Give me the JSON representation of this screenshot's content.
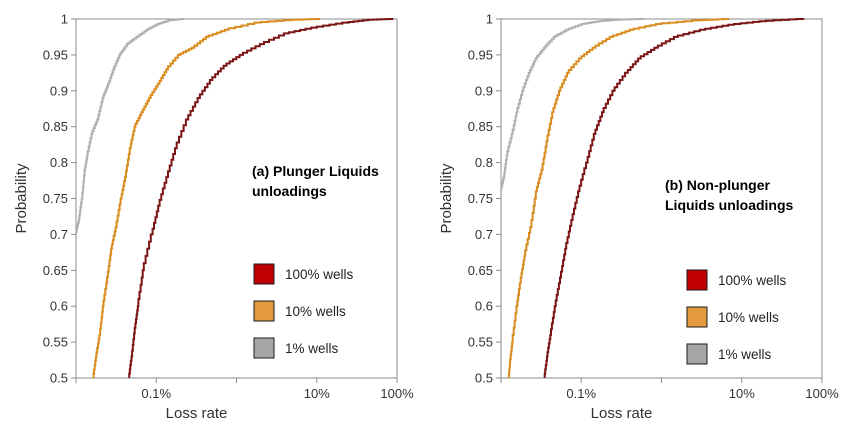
{
  "chart_data": [
    {
      "type": "line",
      "title": "",
      "annotation": [
        "(a) Plunger Liquids",
        "unloadings"
      ],
      "xlabel": "Loss rate",
      "ylabel": "Probability",
      "xscale": "log",
      "xlim": [
        0.0001,
        1
      ],
      "ylim": [
        0.5,
        1
      ],
      "grid": false,
      "legend_position": "lower-right",
      "x_ticks": [
        {
          "value": 0.001,
          "label": "0.1%"
        },
        {
          "value": 0.1,
          "label": "10%"
        },
        {
          "value": 1,
          "label": "100%"
        }
      ],
      "y_ticks": [
        {
          "value": 0.5,
          "label": "0.5"
        },
        {
          "value": 0.55,
          "label": "0.55"
        },
        {
          "value": 0.6,
          "label": "0.6"
        },
        {
          "value": 0.65,
          "label": "0.65"
        },
        {
          "value": 0.7,
          "label": "0.7"
        },
        {
          "value": 0.75,
          "label": "0.75"
        },
        {
          "value": 0.8,
          "label": "0.8"
        },
        {
          "value": 0.85,
          "label": "0.85"
        },
        {
          "value": 0.9,
          "label": "0.9"
        },
        {
          "value": 0.95,
          "label": "0.95"
        },
        {
          "value": 1,
          "label": "1"
        }
      ],
      "series": [
        {
          "name": "100% wells",
          "legend_color": "#c00000",
          "line_color": "#7b1414",
          "points": [
            [
              0.00046,
              0.5
            ],
            [
              0.0005,
              0.53
            ],
            [
              0.00055,
              0.57
            ],
            [
              0.0006,
              0.6
            ],
            [
              0.0007,
              0.65
            ],
            [
              0.0009,
              0.7
            ],
            [
              0.0011,
              0.74
            ],
            [
              0.0014,
              0.78
            ],
            [
              0.0018,
              0.82
            ],
            [
              0.0025,
              0.86
            ],
            [
              0.0035,
              0.89
            ],
            [
              0.005,
              0.915
            ],
            [
              0.0075,
              0.935
            ],
            [
              0.012,
              0.95
            ],
            [
              0.022,
              0.965
            ],
            [
              0.045,
              0.98
            ],
            [
              0.1,
              0.988
            ],
            [
              0.25,
              0.995
            ],
            [
              0.5,
              0.999
            ],
            [
              0.9,
              1
            ]
          ]
        },
        {
          "name": "10% wells",
          "legend_color": "#e39a3c",
          "line_color": "#d98c1f",
          "points": [
            [
              0.000165,
              0.5
            ],
            [
              0.00018,
              0.53
            ],
            [
              0.0002,
              0.56
            ],
            [
              0.00022,
              0.6
            ],
            [
              0.00025,
              0.64
            ],
            [
              0.00028,
              0.68
            ],
            [
              0.00032,
              0.71
            ],
            [
              0.00037,
              0.75
            ],
            [
              0.00042,
              0.78
            ],
            [
              0.00048,
              0.82
            ],
            [
              0.00055,
              0.85
            ],
            [
              0.00068,
              0.87
            ],
            [
              0.00085,
              0.89
            ],
            [
              0.0011,
              0.91
            ],
            [
              0.0014,
              0.93
            ],
            [
              0.002,
              0.95
            ],
            [
              0.003,
              0.96
            ],
            [
              0.0045,
              0.975
            ],
            [
              0.008,
              0.985
            ],
            [
              0.02,
              0.995
            ],
            [
              0.06,
              0.999
            ],
            [
              0.11,
              1
            ]
          ]
        },
        {
          "name": "1% wells",
          "legend_color": "#a6a6a6",
          "line_color": "#b0b0b0",
          "points": [
            [
              0.0001,
              0.7
            ],
            [
              0.00011,
              0.72
            ],
            [
              0.00012,
              0.75
            ],
            [
              0.00013,
              0.79
            ],
            [
              0.00014,
              0.81
            ],
            [
              0.00016,
              0.84
            ],
            [
              0.00019,
              0.86
            ],
            [
              0.00022,
              0.89
            ],
            [
              0.00026,
              0.91
            ],
            [
              0.0003,
              0.93
            ],
            [
              0.00036,
              0.95
            ],
            [
              0.00045,
              0.965
            ],
            [
              0.0006,
              0.975
            ],
            [
              0.0008,
              0.985
            ],
            [
              0.0011,
              0.993
            ],
            [
              0.0015,
              0.998
            ],
            [
              0.0022,
              1
            ]
          ]
        }
      ]
    },
    {
      "type": "line",
      "title": "",
      "annotation": [
        "(b) Non-plunger",
        "Liquids unloadings"
      ],
      "xlabel": "Loss rate",
      "ylabel": "Probability",
      "xscale": "log",
      "xlim": [
        0.0001,
        1
      ],
      "ylim": [
        0.5,
        1
      ],
      "grid": false,
      "legend_position": "lower-right",
      "x_ticks": [
        {
          "value": 0.001,
          "label": "0.1%"
        },
        {
          "value": 0.1,
          "label": "10%"
        },
        {
          "value": 1,
          "label": "100%"
        }
      ],
      "y_ticks": [
        {
          "value": 0.5,
          "label": "0.5"
        },
        {
          "value": 0.55,
          "label": "0.55"
        },
        {
          "value": 0.6,
          "label": "0.6"
        },
        {
          "value": 0.65,
          "label": "0.65"
        },
        {
          "value": 0.7,
          "label": "0.7"
        },
        {
          "value": 0.75,
          "label": "0.75"
        },
        {
          "value": 0.8,
          "label": "0.8"
        },
        {
          "value": 0.85,
          "label": "0.85"
        },
        {
          "value": 0.9,
          "label": "0.9"
        },
        {
          "value": 0.95,
          "label": "0.95"
        },
        {
          "value": 1,
          "label": "1"
        }
      ],
      "series": [
        {
          "name": "100% wells",
          "legend_color": "#c00000",
          "line_color": "#7b1414",
          "points": [
            [
              0.00035,
              0.5
            ],
            [
              0.00038,
              0.53
            ],
            [
              0.00042,
              0.56
            ],
            [
              0.00048,
              0.6
            ],
            [
              0.00056,
              0.64
            ],
            [
              0.00065,
              0.68
            ],
            [
              0.00078,
              0.72
            ],
            [
              0.00095,
              0.76
            ],
            [
              0.0012,
              0.8
            ],
            [
              0.0015,
              0.84
            ],
            [
              0.0019,
              0.87
            ],
            [
              0.0026,
              0.9
            ],
            [
              0.0038,
              0.925
            ],
            [
              0.0055,
              0.945
            ],
            [
              0.009,
              0.96
            ],
            [
              0.016,
              0.975
            ],
            [
              0.035,
              0.985
            ],
            [
              0.08,
              0.992
            ],
            [
              0.2,
              0.997
            ],
            [
              0.6,
              1
            ]
          ]
        },
        {
          "name": "10% wells",
          "legend_color": "#e39a3c",
          "line_color": "#d98c1f",
          "points": [
            [
              0.000125,
              0.5
            ],
            [
              0.00013,
              0.52
            ],
            [
              0.00014,
              0.55
            ],
            [
              0.00016,
              0.6
            ],
            [
              0.00018,
              0.64
            ],
            [
              0.0002,
              0.67
            ],
            [
              0.00024,
              0.71
            ],
            [
              0.00028,
              0.76
            ],
            [
              0.00033,
              0.79
            ],
            [
              0.00038,
              0.83
            ],
            [
              0.00045,
              0.87
            ],
            [
              0.00055,
              0.9
            ],
            [
              0.0007,
              0.925
            ],
            [
              0.001,
              0.945
            ],
            [
              0.0015,
              0.96
            ],
            [
              0.0025,
              0.975
            ],
            [
              0.0045,
              0.985
            ],
            [
              0.01,
              0.993
            ],
            [
              0.03,
              0.998
            ],
            [
              0.07,
              1
            ]
          ]
        },
        {
          "name": "1% wells",
          "legend_color": "#a6a6a6",
          "line_color": "#b0b0b0",
          "points": [
            [
              0.0001,
              0.76
            ],
            [
              0.00011,
              0.78
            ],
            [
              0.00012,
              0.81
            ],
            [
              0.00014,
              0.84
            ],
            [
              0.00016,
              0.87
            ],
            [
              0.00019,
              0.9
            ],
            [
              0.00023,
              0.925
            ],
            [
              0.00028,
              0.945
            ],
            [
              0.00036,
              0.96
            ],
            [
              0.00048,
              0.975
            ],
            [
              0.0007,
              0.985
            ],
            [
              0.0011,
              0.993
            ],
            [
              0.0018,
              0.997
            ],
            [
              0.003,
              0.999
            ],
            [
              0.006,
              1
            ]
          ]
        }
      ]
    }
  ]
}
